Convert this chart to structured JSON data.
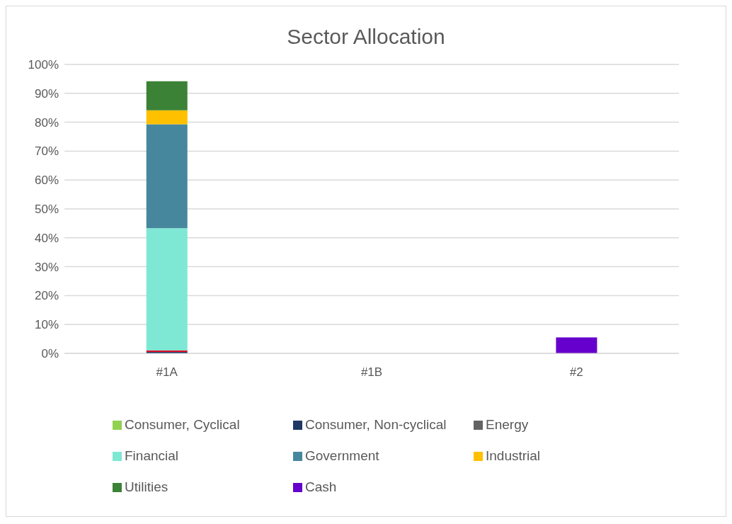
{
  "chart_data": {
    "type": "bar",
    "title": "Sector Allocation",
    "categories": [
      "#1A",
      "#1B",
      "#2"
    ],
    "stacked": true,
    "grid": "y",
    "legend": "bottom",
    "ylim": [
      0,
      100
    ],
    "yticks": [
      {
        "value": 0,
        "label": "0%"
      },
      {
        "value": 10,
        "label": "10%"
      },
      {
        "value": 20,
        "label": "20%"
      },
      {
        "value": 30,
        "label": "30%"
      },
      {
        "value": 40,
        "label": "40%"
      },
      {
        "value": 50,
        "label": "50%"
      },
      {
        "value": 60,
        "label": "60%"
      },
      {
        "value": 70,
        "label": "70%"
      },
      {
        "value": 80,
        "label": "80%"
      },
      {
        "value": 90,
        "label": "90%"
      },
      {
        "value": 100,
        "label": "100%"
      }
    ],
    "series": [
      {
        "name": "Consumer, Cyclical",
        "color": "#92d050",
        "values": [
          0,
          0,
          0
        ]
      },
      {
        "name": "Consumer, Non-cyclical",
        "color": "#1f3864",
        "values": [
          0.5,
          0,
          0
        ]
      },
      {
        "color": "#e8102a",
        "values": [
          0.5,
          0,
          0
        ]
      },
      {
        "name": "Energy",
        "color": "#636363",
        "values": [
          0,
          0,
          0
        ]
      },
      {
        "name": "Financial",
        "color": "#7fe8d4",
        "values": [
          42.3,
          0,
          0
        ]
      },
      {
        "name": "Government",
        "color": "#46879e",
        "values": [
          36,
          0,
          0
        ]
      },
      {
        "name": "Industrial",
        "color": "#ffc000",
        "values": [
          4.8,
          0,
          0
        ]
      },
      {
        "name": "Utilities",
        "color": "#3b8236",
        "values": [
          10.1,
          0,
          0
        ]
      },
      {
        "name": "Cash",
        "color": "#6600cc",
        "values": [
          0,
          0,
          5.5
        ]
      }
    ]
  }
}
